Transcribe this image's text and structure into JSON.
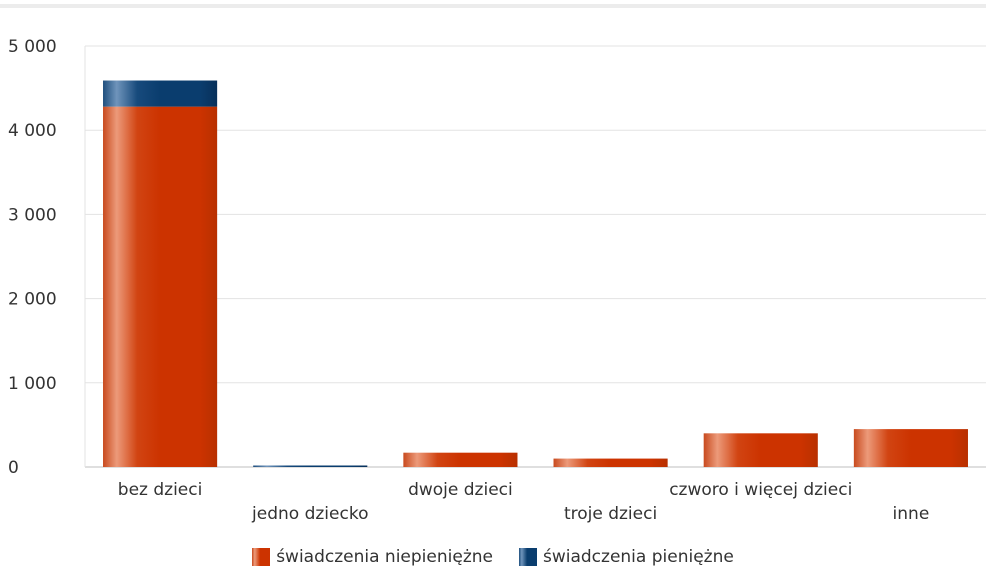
{
  "chart_data": {
    "type": "bar",
    "stacked": true,
    "categories": [
      "bez dzieci",
      "jedno dziecko",
      "dwoje dzieci",
      "troje dzieci",
      "czworo i więcej dzieci",
      "inne"
    ],
    "series": [
      {
        "name": "świadczenia niepieniężne",
        "values": [
          4280,
          0,
          170,
          100,
          400,
          450
        ],
        "color": "#cc3300"
      },
      {
        "name": "świadczenia pieniężne",
        "values": [
          310,
          15,
          0,
          0,
          0,
          0
        ],
        "color": "#0a3d6e"
      }
    ],
    "ylim": [
      0,
      5000
    ],
    "yticks": [
      "0",
      "1 000",
      "2 000",
      "3 000",
      "4 000",
      "5 000"
    ],
    "grid": true,
    "legend_position": "bottom"
  }
}
